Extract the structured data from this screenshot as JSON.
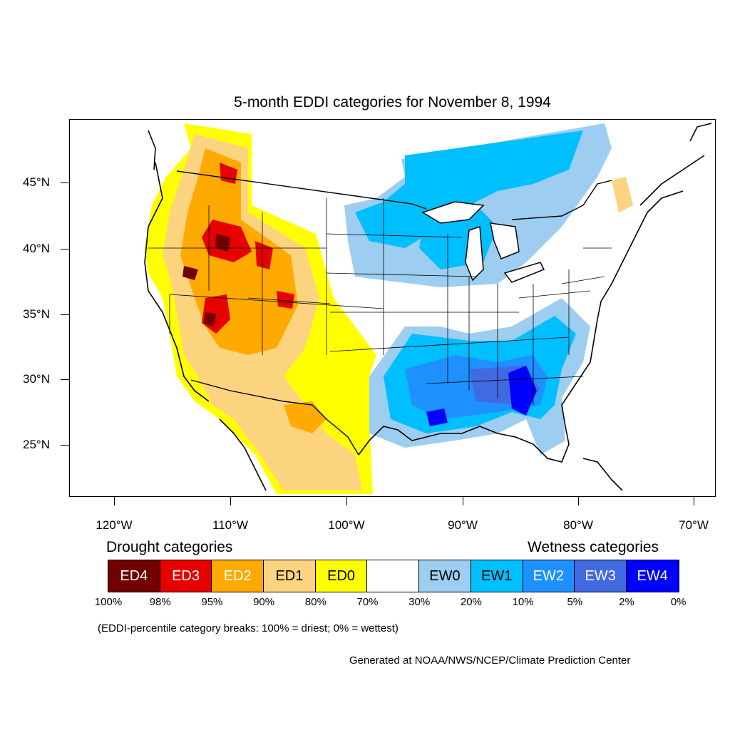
{
  "title": "5-month EDDI categories for November 8, 1994",
  "axes": {
    "lat_labels": [
      "45°N",
      "40°N",
      "35°N",
      "30°N",
      "25°N"
    ],
    "lon_labels": [
      "120°W",
      "110°W",
      "100°W",
      "90°W",
      "80°W",
      "70°W"
    ]
  },
  "legend": {
    "drought_heading": "Drought categories",
    "wetness_heading": "Wetness categories",
    "categories": [
      {
        "label": "ED4",
        "color": "#730000",
        "text_color": "#ffffff"
      },
      {
        "label": "ED3",
        "color": "#e60000",
        "text_color": "#ffffff"
      },
      {
        "label": "ED2",
        "color": "#ffaa00",
        "text_color": "#ffffff"
      },
      {
        "label": "ED1",
        "color": "#fcd37f",
        "text_color": "#000000"
      },
      {
        "label": "ED0",
        "color": "#ffff00",
        "text_color": "#000000"
      },
      {
        "label": "",
        "color": "#ffffff",
        "text_color": "#000000"
      },
      {
        "label": "EW0",
        "color": "#9dcdf0",
        "text_color": "#000000"
      },
      {
        "label": "EW1",
        "color": "#00bfff",
        "text_color": "#000000"
      },
      {
        "label": "EW2",
        "color": "#1e90ff",
        "text_color": "#ffffff"
      },
      {
        "label": "EW3",
        "color": "#4169e1",
        "text_color": "#ffffff"
      },
      {
        "label": "EW4",
        "color": "#0000ff",
        "text_color": "#ffffff"
      }
    ],
    "breaks": [
      "100%",
      "98%",
      "95%",
      "90%",
      "80%",
      "70%",
      "30%",
      "20%",
      "10%",
      "5%",
      "2%",
      "0%"
    ]
  },
  "note": "(EDDI-percentile category breaks: 100% = driest; 0% = wettest)",
  "credit": "Generated at NOAA/NWS/NCEP/Climate Prediction Center"
}
